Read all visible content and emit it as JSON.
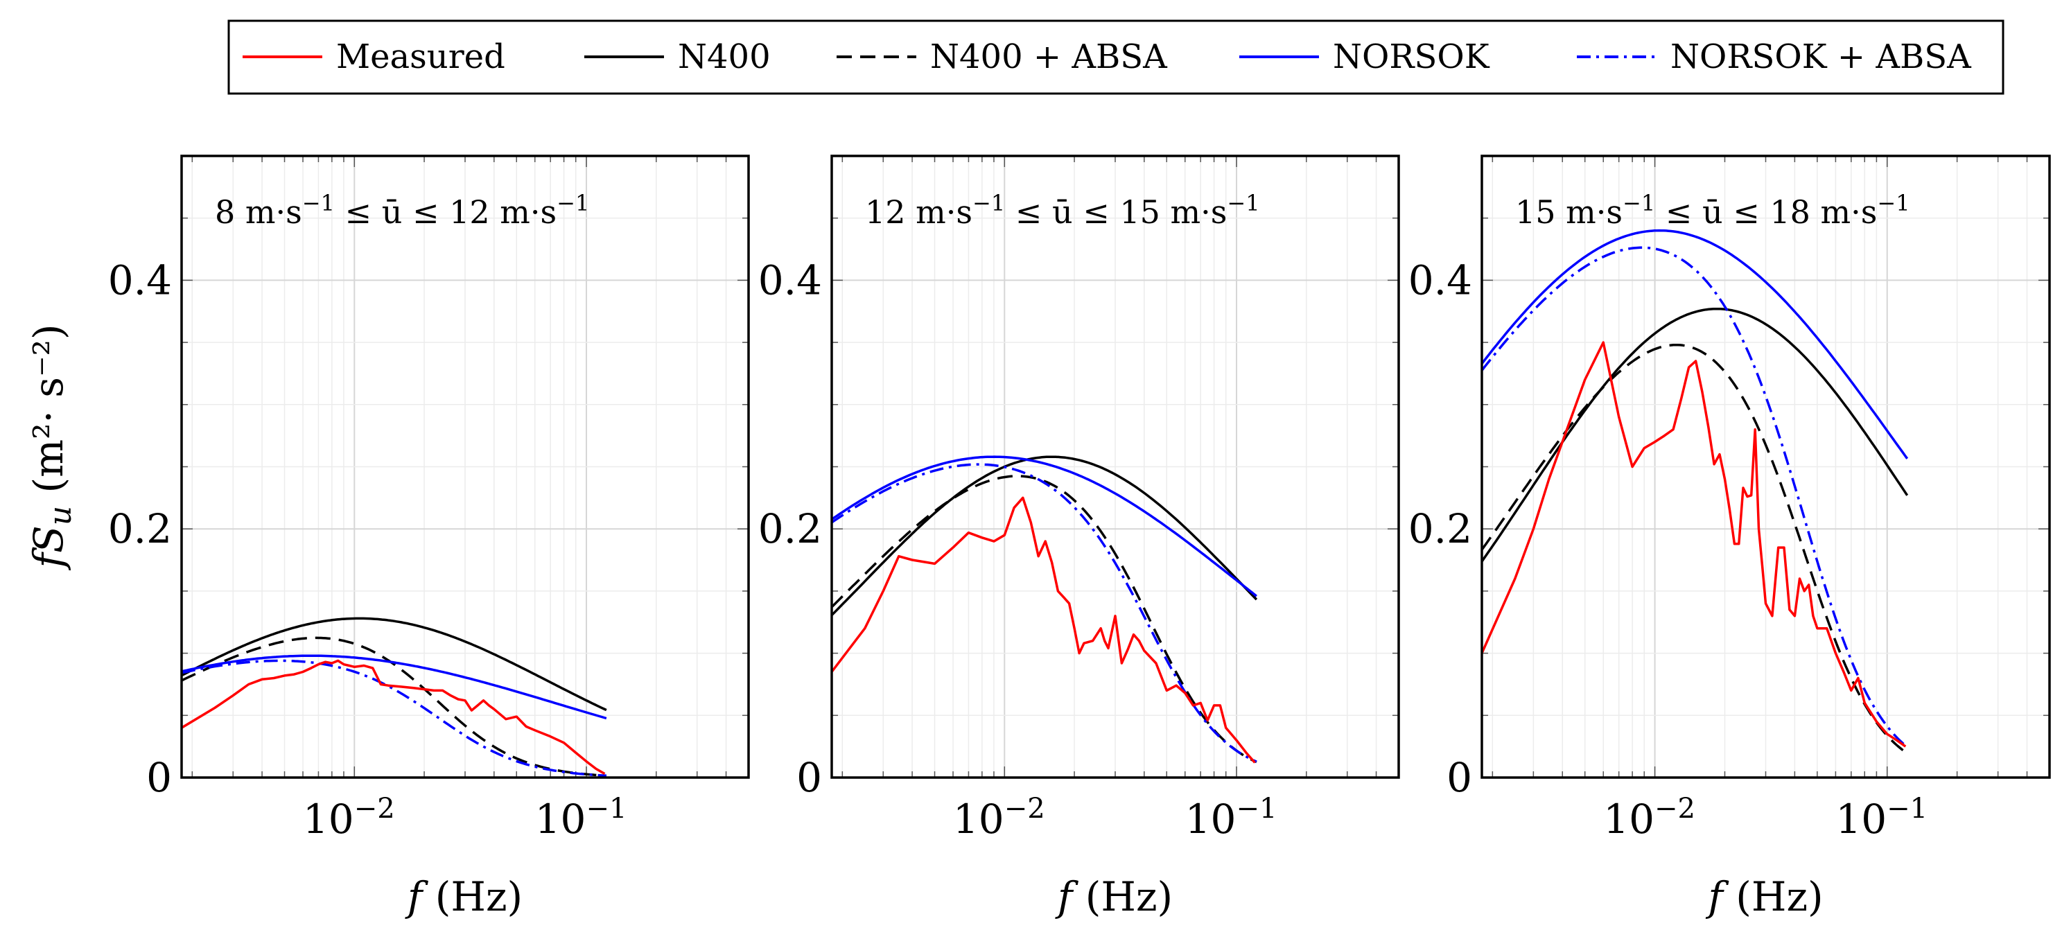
{
  "legend": [
    {
      "label": "Measured",
      "color": "#ff0000",
      "dash": "solid"
    },
    {
      "label": "N400",
      "color": "#000000",
      "dash": "solid"
    },
    {
      "label": "N400 + ABSA",
      "color": "#000000",
      "dash": "dashed"
    },
    {
      "label": "NORSOK",
      "color": "#0000ff",
      "dash": "solid"
    },
    {
      "label": "NORSOK + ABSA",
      "color": "#0000ff",
      "dash": "dashdot"
    }
  ],
  "chart_data": [
    {
      "type": "line",
      "annotation": {
        "lead": "8 m·s",
        "sup1": "−1",
        "mid": " ≤ ū ≤ 12 m·s",
        "sup2": "−1"
      },
      "xlabel": {
        "italic": "f",
        "rest": " (Hz)"
      },
      "ylabel": {
        "pre": "fS",
        "sub": "u",
        "units": "(m²· s⁻²)"
      },
      "xscale": "log",
      "xlim": [
        0.0018,
        0.5
      ],
      "ylim": [
        0,
        0.5
      ],
      "xticks": [
        {
          "value": 0.01,
          "base": "10",
          "exp": "−2"
        },
        {
          "value": 0.1,
          "base": "10",
          "exp": "−1"
        }
      ],
      "yticks": [
        {
          "value": 0,
          "label": "0"
        },
        {
          "value": 0.2,
          "label": "0.2"
        },
        {
          "value": 0.4,
          "label": "0.4"
        }
      ],
      "series": [
        {
          "name": "Measured",
          "x": [
            0.0018,
            0.0025,
            0.003,
            0.0035,
            0.004,
            0.0045,
            0.005,
            0.0055,
            0.006,
            0.0065,
            0.007,
            0.0075,
            0.008,
            0.0085,
            0.009,
            0.0095,
            0.01,
            0.011,
            0.012,
            0.013,
            0.014,
            0.016,
            0.018,
            0.02,
            0.022,
            0.024,
            0.026,
            0.028,
            0.03,
            0.032,
            0.034,
            0.036,
            0.038,
            0.04,
            0.045,
            0.05,
            0.055,
            0.06,
            0.07,
            0.08,
            0.09,
            0.1,
            0.11,
            0.12
          ],
          "values": [
            0.04,
            0.056,
            0.066,
            0.075,
            0.079,
            0.08,
            0.082,
            0.083,
            0.085,
            0.088,
            0.091,
            0.093,
            0.092,
            0.094,
            0.091,
            0.09,
            0.089,
            0.09,
            0.088,
            0.075,
            0.074,
            0.073,
            0.072,
            0.071,
            0.07,
            0.07,
            0.066,
            0.063,
            0.062,
            0.054,
            0.058,
            0.062,
            0.058,
            0.055,
            0.047,
            0.049,
            0.041,
            0.038,
            0.033,
            0.028,
            0.02,
            0.013,
            0.007,
            0.003
          ]
        },
        {
          "name": "N400",
          "peak": 0.128,
          "xpeak": 0.0105,
          "width": 1.15
        },
        {
          "name": "N400 + ABSA",
          "peak": 0.122,
          "xpeak": 0.0105,
          "width": 1.15,
          "cutoff": 0.025,
          "power": 2.2
        },
        {
          "name": "NORSOK",
          "peak": 0.098,
          "xpeak": 0.0065,
          "width": 1.5
        },
        {
          "name": "NORSOK + ABSA",
          "peak": 0.097,
          "xpeak": 0.0065,
          "width": 1.5,
          "cutoff": 0.026,
          "power": 2.2
        }
      ]
    },
    {
      "type": "line",
      "annotation": {
        "lead": "12 m·s",
        "sup1": "−1",
        "mid": " ≤ ū ≤ 15 m·s",
        "sup2": "−1"
      },
      "xlabel": {
        "italic": "f",
        "rest": " (Hz)"
      },
      "xscale": "log",
      "xlim": [
        0.0018,
        0.5
      ],
      "ylim": [
        0,
        0.5
      ],
      "xticks": [
        {
          "value": 0.01,
          "base": "10",
          "exp": "−2"
        },
        {
          "value": 0.1,
          "base": "10",
          "exp": "−1"
        }
      ],
      "yticks": [
        {
          "value": 0,
          "label": "0"
        },
        {
          "value": 0.2,
          "label": "0.2"
        },
        {
          "value": 0.4,
          "label": "0.4"
        }
      ],
      "series": [
        {
          "name": "Measured",
          "x": [
            0.0018,
            0.0025,
            0.003,
            0.0035,
            0.004,
            0.005,
            0.006,
            0.007,
            0.008,
            0.009,
            0.01,
            0.011,
            0.012,
            0.013,
            0.014,
            0.015,
            0.016,
            0.017,
            0.018,
            0.019,
            0.02,
            0.021,
            0.022,
            0.024,
            0.026,
            0.027,
            0.028,
            0.03,
            0.032,
            0.034,
            0.036,
            0.038,
            0.04,
            0.045,
            0.05,
            0.055,
            0.06,
            0.065,
            0.07,
            0.075,
            0.08,
            0.085,
            0.09,
            0.1,
            0.11,
            0.12
          ],
          "values": [
            0.085,
            0.12,
            0.15,
            0.178,
            0.175,
            0.172,
            0.185,
            0.197,
            0.193,
            0.19,
            0.195,
            0.217,
            0.225,
            0.205,
            0.178,
            0.19,
            0.173,
            0.15,
            0.145,
            0.14,
            0.12,
            0.1,
            0.108,
            0.11,
            0.12,
            0.11,
            0.104,
            0.13,
            0.092,
            0.103,
            0.115,
            0.11,
            0.102,
            0.092,
            0.07,
            0.074,
            0.068,
            0.058,
            0.06,
            0.046,
            0.058,
            0.058,
            0.04,
            0.03,
            0.02,
            0.012
          ]
        },
        {
          "name": "N400",
          "peak": 0.258,
          "xpeak": 0.016,
          "width": 1.15
        },
        {
          "name": "N400 + ABSA",
          "peak": 0.25,
          "xpeak": 0.014,
          "width": 1.15,
          "cutoff": 0.05,
          "power": 2.5
        },
        {
          "name": "NORSOK",
          "peak": 0.258,
          "xpeak": 0.009,
          "width": 1.5
        },
        {
          "name": "NORSOK + ABSA",
          "peak": 0.255,
          "xpeak": 0.009,
          "width": 1.5,
          "cutoff": 0.048,
          "power": 2.5
        }
      ]
    },
    {
      "type": "line",
      "annotation": {
        "lead": "15 m·s",
        "sup1": "−1",
        "mid": " ≤ ū ≤ 18 m·s",
        "sup2": "−1"
      },
      "xlabel": {
        "italic": "f",
        "rest": " (Hz)"
      },
      "xscale": "log",
      "xlim": [
        0.0018,
        0.5
      ],
      "ylim": [
        0,
        0.5
      ],
      "xticks": [
        {
          "value": 0.01,
          "base": "10",
          "exp": "−2"
        },
        {
          "value": 0.1,
          "base": "10",
          "exp": "−1"
        }
      ],
      "yticks": [
        {
          "value": 0,
          "label": "0"
        },
        {
          "value": 0.2,
          "label": "0.2"
        },
        {
          "value": 0.4,
          "label": "0.4"
        }
      ],
      "series": [
        {
          "name": "Measured",
          "x": [
            0.0018,
            0.0025,
            0.003,
            0.0035,
            0.004,
            0.005,
            0.006,
            0.007,
            0.008,
            0.009,
            0.01,
            0.011,
            0.012,
            0.013,
            0.014,
            0.015,
            0.016,
            0.017,
            0.018,
            0.019,
            0.02,
            0.021,
            0.022,
            0.023,
            0.024,
            0.025,
            0.026,
            0.027,
            0.028,
            0.029,
            0.03,
            0.032,
            0.034,
            0.036,
            0.038,
            0.04,
            0.042,
            0.044,
            0.046,
            0.048,
            0.05,
            0.055,
            0.06,
            0.065,
            0.07,
            0.075,
            0.08,
            0.09,
            0.1,
            0.11,
            0.12
          ],
          "values": [
            0.1,
            0.16,
            0.2,
            0.24,
            0.27,
            0.32,
            0.35,
            0.29,
            0.25,
            0.265,
            0.27,
            0.275,
            0.28,
            0.305,
            0.33,
            0.335,
            0.31,
            0.282,
            0.252,
            0.26,
            0.24,
            0.215,
            0.188,
            0.188,
            0.233,
            0.226,
            0.227,
            0.28,
            0.2,
            0.17,
            0.14,
            0.13,
            0.185,
            0.185,
            0.135,
            0.13,
            0.16,
            0.15,
            0.155,
            0.13,
            0.12,
            0.12,
            0.1,
            0.085,
            0.07,
            0.08,
            0.06,
            0.045,
            0.035,
            0.03,
            0.025
          ]
        },
        {
          "name": "N400",
          "peak": 0.377,
          "xpeak": 0.0185,
          "width": 1.15
        },
        {
          "name": "N400 + ABSA",
          "peak": 0.362,
          "xpeak": 0.016,
          "width": 1.15,
          "cutoff": 0.05,
          "power": 2.5
        },
        {
          "name": "NORSOK",
          "peak": 0.44,
          "xpeak": 0.0105,
          "width": 1.45
        },
        {
          "name": "NORSOK + ABSA",
          "peak": 0.433,
          "xpeak": 0.0105,
          "width": 1.45,
          "cutoff": 0.05,
          "power": 2.5
        }
      ]
    }
  ]
}
